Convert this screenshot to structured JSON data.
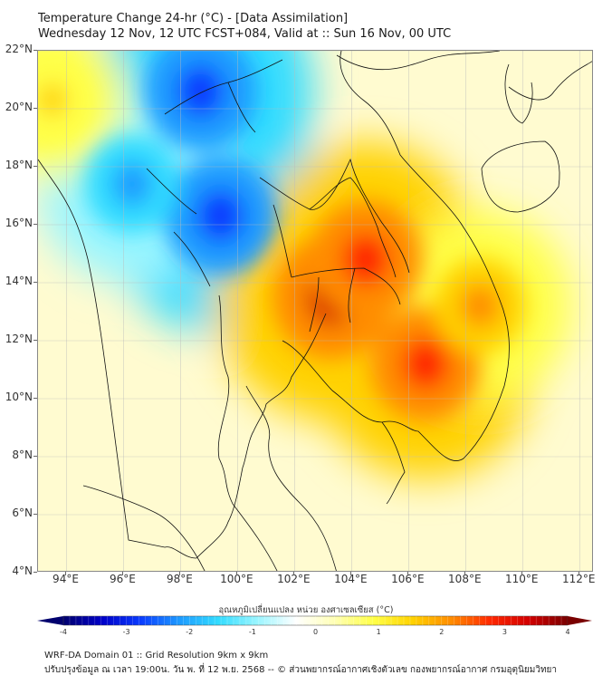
{
  "header": {
    "title_line1": "Temperature Change 24-hr (°C) - [Data Assimilation]",
    "title_line2": "Wednesday 12 Nov, 12 UTC FCST+084, Valid at :: Sun 16 Nov, 00 UTC"
  },
  "map": {
    "lat_range": [
      4,
      22
    ],
    "lon_range": [
      93,
      112.5
    ],
    "lat_ticks": [
      "22°N",
      "20°N",
      "18°N",
      "16°N",
      "14°N",
      "12°N",
      "10°N",
      "8°N",
      "6°N",
      "4°N"
    ],
    "lat_values": [
      22,
      20,
      18,
      16,
      14,
      12,
      10,
      8,
      6,
      4
    ],
    "lon_ticks": [
      "94°E",
      "96°E",
      "98°E",
      "100°E",
      "102°E",
      "104°E",
      "106°E",
      "108°E",
      "110°E",
      "112°E"
    ],
    "lon_values": [
      94,
      96,
      98,
      100,
      102,
      104,
      106,
      108,
      110,
      112
    ],
    "field_features": [
      {
        "name": "cooling-core-north-myanmar",
        "lon": 98.7,
        "lat": 20.6,
        "value": -3.0
      },
      {
        "name": "cooling-core-central-myanmar",
        "lon": 99.4,
        "lat": 16.3,
        "value": -3.0
      },
      {
        "name": "cooling-core-bay-of-bengal",
        "lon": 96.3,
        "lat": 17.4,
        "value": -2.3
      },
      {
        "name": "warming-core-cambodia",
        "lon": 103.3,
        "lat": 13.5,
        "value": 3.2
      },
      {
        "name": "warming-core-east-thailand",
        "lon": 104.5,
        "lat": 14.8,
        "value": 3.0
      },
      {
        "name": "warming-core-south-cambodia",
        "lon": 106.6,
        "lat": 11.2,
        "value": 2.9
      },
      {
        "name": "warming-core-south-vietnam",
        "lon": 108.5,
        "lat": 13.2,
        "value": 2.2
      },
      {
        "name": "warming-northwest",
        "lon": 93.5,
        "lat": 20.3,
        "value": 1.5
      }
    ]
  },
  "colorbar": {
    "label": "อุณหภูมิเปลี่ยนแปลง หน่วย องศาเซลเซียส (°C)",
    "min": -4,
    "max": 4,
    "ticks": [
      "-4",
      "-3",
      "-2",
      "-1",
      "0",
      "1",
      "2",
      "3",
      "4"
    ],
    "tick_values": [
      -4,
      -3,
      -2,
      -1,
      0,
      1,
      2,
      3,
      4
    ],
    "colors": [
      "#00006e",
      "#0000c8",
      "#0a3cff",
      "#1e9bff",
      "#32dcff",
      "#9af5ff",
      "#ffffff",
      "#ffffb4",
      "#ffff46",
      "#ffd200",
      "#ff8c00",
      "#ff2800",
      "#d20000",
      "#7a0000"
    ]
  },
  "footer": {
    "line1": "WRF-DA Domain 01 :: Grid Resolution 9km x 9km",
    "line2": "ปรับปรุงข้อมูล ณ เวลา 19:00น. วัน พ. ที่ 12 พ.ย. 2568 -- © ส่วนพยากรณ์อากาศเชิงตัวเลข กองพยากรณ์อากาศ กรมอุตุนิยมวิทยา"
  }
}
